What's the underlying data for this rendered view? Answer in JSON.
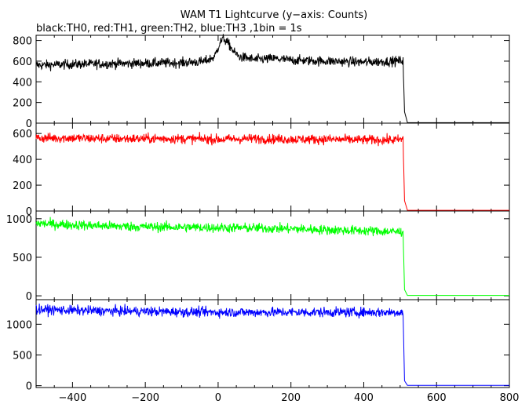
{
  "title": "WAM T1 Lightcurve (y−axis: Counts)",
  "subtitle": "black:TH0, red:TH1, green:TH2, blue:TH3 ,1bin = 1s",
  "chart_data": {
    "type": "line",
    "title": "WAM T1 Lightcurve (y−axis: Counts)",
    "subtitle": "black:TH0, red:TH1, green:TH2, blue:TH3 ,1bin = 1s",
    "xlim": [
      -500,
      800
    ],
    "x_ticks": [
      -400,
      -200,
      0,
      200,
      400,
      600,
      800
    ],
    "grid": false,
    "panels": [
      {
        "name": "TH0",
        "color": "#000000",
        "ylim": [
          0,
          850
        ],
        "y_ticks": [
          0,
          200,
          400,
          600,
          800
        ],
        "x": [
          -500,
          -400,
          -300,
          -200,
          -100,
          -40,
          -10,
          5,
          15,
          30,
          45,
          60,
          80,
          100,
          150,
          200,
          300,
          400,
          490,
          508,
          512,
          520,
          600,
          700,
          800
        ],
        "values": [
          560,
          570,
          575,
          580,
          585,
          595,
          640,
          780,
          820,
          760,
          680,
          640,
          630,
          615,
          625,
          610,
          600,
          590,
          600,
          605,
          110,
          5,
          5,
          5,
          5
        ]
      },
      {
        "name": "TH1",
        "color": "#ff0000",
        "ylim": [
          0,
          680
        ],
        "y_ticks": [
          0,
          200,
          400,
          600
        ],
        "x": [
          -500,
          -400,
          -300,
          -200,
          -100,
          0,
          100,
          200,
          300,
          400,
          490,
          508,
          512,
          520,
          600,
          700,
          800
        ],
        "values": [
          565,
          565,
          560,
          560,
          560,
          555,
          560,
          555,
          555,
          550,
          550,
          555,
          80,
          5,
          5,
          5,
          5
        ]
      },
      {
        "name": "TH2",
        "color": "#00ff00",
        "ylim": [
          -50,
          1100
        ],
        "y_ticks": [
          0,
          500,
          1000
        ],
        "x": [
          -500,
          -400,
          -300,
          -200,
          -100,
          0,
          100,
          200,
          300,
          400,
          490,
          508,
          512,
          520,
          600,
          700,
          800
        ],
        "values": [
          940,
          920,
          905,
          895,
          890,
          885,
          880,
          870,
          855,
          845,
          830,
          835,
          80,
          5,
          5,
          5,
          5
        ]
      },
      {
        "name": "TH3",
        "color": "#0000ff",
        "ylim": [
          -30,
          1400
        ],
        "y_ticks": [
          0,
          500,
          1000
        ],
        "x": [
          -500,
          -400,
          -300,
          -200,
          -100,
          0,
          100,
          200,
          300,
          400,
          490,
          508,
          512,
          520,
          600,
          700,
          800
        ],
        "values": [
          1240,
          1225,
          1215,
          1210,
          1200,
          1195,
          1195,
          1195,
          1195,
          1195,
          1195,
          1195,
          80,
          5,
          5,
          5,
          5
        ]
      }
    ]
  }
}
